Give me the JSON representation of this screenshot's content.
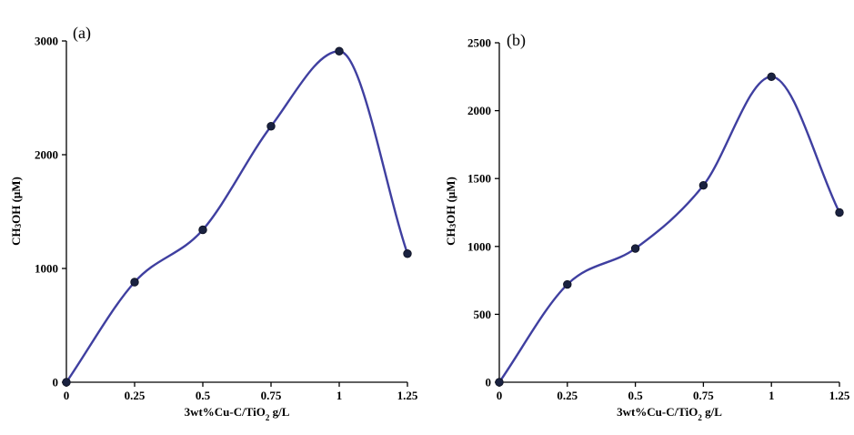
{
  "chart_data": [
    {
      "type": "line",
      "panel_label": "(a)",
      "xlabel": "3wt%Cu-C/TiO2 g/L",
      "ylabel": "CH3OH (μM)",
      "x": [
        0,
        0.25,
        0.5,
        0.75,
        1,
        1.25
      ],
      "x_ticks": [
        "0",
        "0.25",
        "0.5",
        "0.75",
        "1",
        "1.25"
      ],
      "xlim": [
        0,
        1.25
      ],
      "ylim": [
        0,
        3000
      ],
      "y_ticks": [
        "0",
        "1000",
        "2000",
        "3000"
      ],
      "series": [
        {
          "values": [
            0,
            880,
            1340,
            2250,
            2910,
            1130
          ],
          "color": "#3f3fa0",
          "marker_color": "#1a2240"
        }
      ],
      "grid": false
    },
    {
      "type": "line",
      "panel_label": "(b)",
      "xlabel": "3wt%Cu-C/TiO2 g/L",
      "ylabel": "CH3OH (μM)",
      "x": [
        0,
        0.25,
        0.5,
        0.75,
        1,
        1.25
      ],
      "x_ticks": [
        "0",
        "0.25",
        "0.5",
        "0.75",
        "1",
        "1.25"
      ],
      "xlim": [
        0,
        1.25
      ],
      "ylim": [
        0,
        2500
      ],
      "y_ticks": [
        "0",
        "500",
        "1000",
        "1500",
        "2000",
        "2500"
      ],
      "series": [
        {
          "values": [
            0,
            720,
            985,
            1450,
            2250,
            1250
          ],
          "color": "#3f3fa0",
          "marker_color": "#1a2240"
        }
      ],
      "grid": false
    }
  ]
}
